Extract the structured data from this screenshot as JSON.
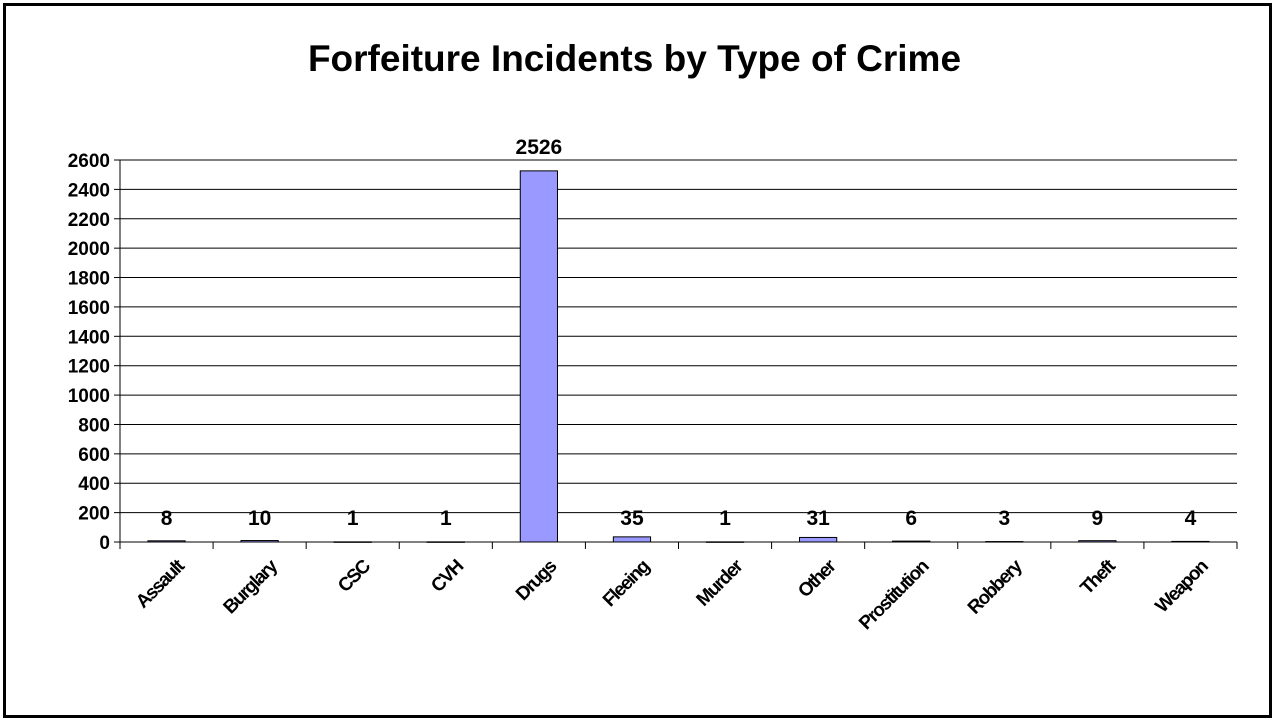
{
  "chart_data": {
    "type": "bar",
    "title": "Forfeiture Incidents by Type of Crime",
    "xlabel": "",
    "ylabel": "",
    "categories": [
      "Assault",
      "Burglary",
      "CSC",
      "CVH",
      "Drugs",
      "Fleeing",
      "Murder",
      "Other",
      "Prostitution",
      "Robbery",
      "Theft",
      "Weapon"
    ],
    "values": [
      8,
      10,
      1,
      1,
      2526,
      35,
      1,
      31,
      6,
      3,
      9,
      4
    ],
    "data_labels": [
      "8",
      "10",
      "1",
      "1",
      "2526",
      "35",
      "1",
      "31",
      "6",
      "3",
      "9",
      "4"
    ],
    "ylim": [
      0,
      2600
    ],
    "yticks": [
      0,
      200,
      400,
      600,
      800,
      1000,
      1200,
      1400,
      1600,
      1800,
      2000,
      2200,
      2400,
      2600
    ],
    "grid": true,
    "legend": "none",
    "bar_color": "#9999ff",
    "bar_edge_color": "#000000"
  }
}
